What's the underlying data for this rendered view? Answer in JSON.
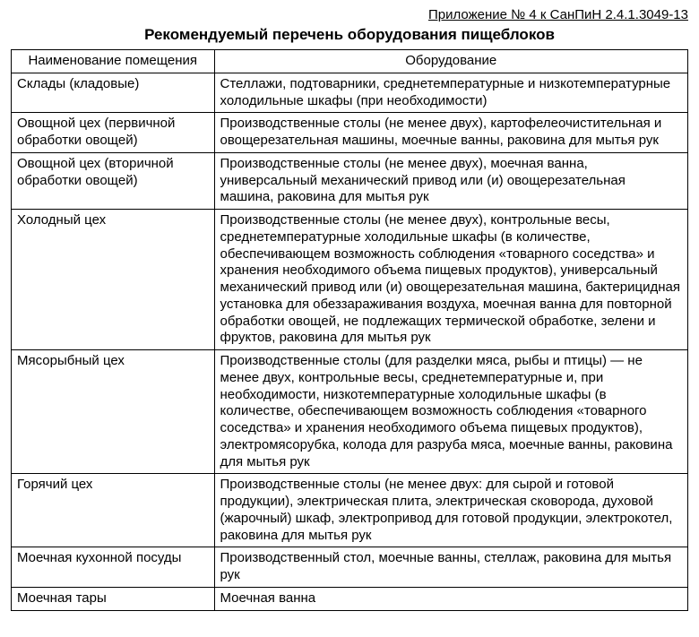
{
  "header_ref": "Приложение № 4 к СанПиН 2.4.1.3049-13",
  "title": "Рекомендуемый перечень оборудования пищеблоков",
  "columns": {
    "room": "Наименование помещения",
    "equipment": "Оборудование"
  },
  "rows": [
    {
      "room": "Склады (кладовые)",
      "equipment": "Стеллажи, подтоварники, среднетемпературные и низкотемпературные холодильные шкафы (при необходимости)"
    },
    {
      "room": "Овощной цех (первичной обработки овощей)",
      "equipment": "Производственные столы (не менее двух), картофелеочистительная и овощерезательная машины, моечные ванны, раковина для мытья рук"
    },
    {
      "room": "Овощной цех (вторичной обработки овощей)",
      "equipment": "Производственные столы (не менее двух), моечная ванна, универсальный механический привод или (и) овощерезательная машина, раковина для мытья рук"
    },
    {
      "room": "Холодный цех",
      "equipment": "Производственные столы (не менее двух), контрольные весы, среднетемпературные холодильные шкафы (в количестве, обеспечивающем возможность соблюдения «товарного соседства» и хранения необходимого объема пищевых продуктов), универсальный механический привод или (и) овощерезательная машина, бактерицидная установка для обеззараживания воздуха, моечная ванна для повторной обработки овощей, не подлежащих термической обработке, зелени и фруктов, раковина для мытья рук"
    },
    {
      "room": "Мясорыбный цех",
      "equipment": "Производственные столы (для разделки мяса, рыбы и птицы) — не менее двух, контрольные весы, среднетемпературные и, при необходимости, низкотемпературные холодильные шкафы (в количестве, обеспечивающем возможность соблюдения «товарного соседства» и хранения необходимого объема пищевых продуктов), электромясорубка, колода для разруба мяса, моечные ванны, раковина для мытья рук"
    },
    {
      "room": "Горячий цех",
      "equipment": "Производственные столы (не менее двух: для сырой и готовой продукции), электрическая плита, электрическая сковорода, духовой (жарочный) шкаф, электропривод для готовой продукции, электрокотел, раковина для мытья рук"
    },
    {
      "room": "Моечная кухонной посуды",
      "equipment": "Производственный стол, моечные ванны, стеллаж, раковина для мытья рук"
    },
    {
      "room": "Моечная тары",
      "equipment": "Моечная ванна"
    }
  ]
}
